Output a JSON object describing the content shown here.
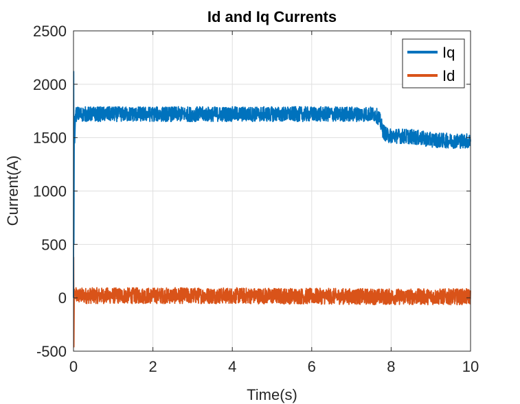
{
  "chart_data": {
    "type": "line",
    "title": "Id and Iq Currents",
    "xlabel": "Time(s)",
    "ylabel": "Current(A)",
    "xlim": [
      0,
      10
    ],
    "ylim": [
      -500,
      2500
    ],
    "xticks": [
      0,
      2,
      4,
      6,
      8,
      10
    ],
    "yticks": [
      -500,
      0,
      500,
      1000,
      1500,
      2000,
      2500
    ],
    "xtick_labels": [
      "0",
      "2",
      "4",
      "6",
      "8",
      "10"
    ],
    "ytick_labels": [
      "-500",
      "0",
      "500",
      "1000",
      "1500",
      "2000",
      "2500"
    ],
    "grid": true,
    "legend_position": "top-right",
    "series": [
      {
        "name": "Iq",
        "color": "#0072BD",
        "x": [
          0,
          0.005,
          0.01,
          0.02,
          0.03,
          0.05,
          1,
          2,
          3,
          4,
          5,
          6,
          7,
          7.6,
          7.7,
          7.8,
          7.9,
          8.5,
          9,
          9.5,
          10
        ],
        "values": [
          0,
          2120,
          500,
          1700,
          1450,
          1720,
          1720,
          1720,
          1720,
          1720,
          1720,
          1720,
          1720,
          1720,
          1680,
          1560,
          1520,
          1510,
          1480,
          1470,
          1470
        ],
        "noise_amplitude": 70
      },
      {
        "name": "Id",
        "color": "#D95319",
        "x": [
          0,
          0.005,
          0.01,
          0.02,
          0.05,
          2,
          4,
          6,
          8,
          10
        ],
        "values": [
          0,
          380,
          -460,
          80,
          20,
          20,
          20,
          15,
          10,
          10
        ],
        "noise_amplitude": 75
      }
    ]
  }
}
